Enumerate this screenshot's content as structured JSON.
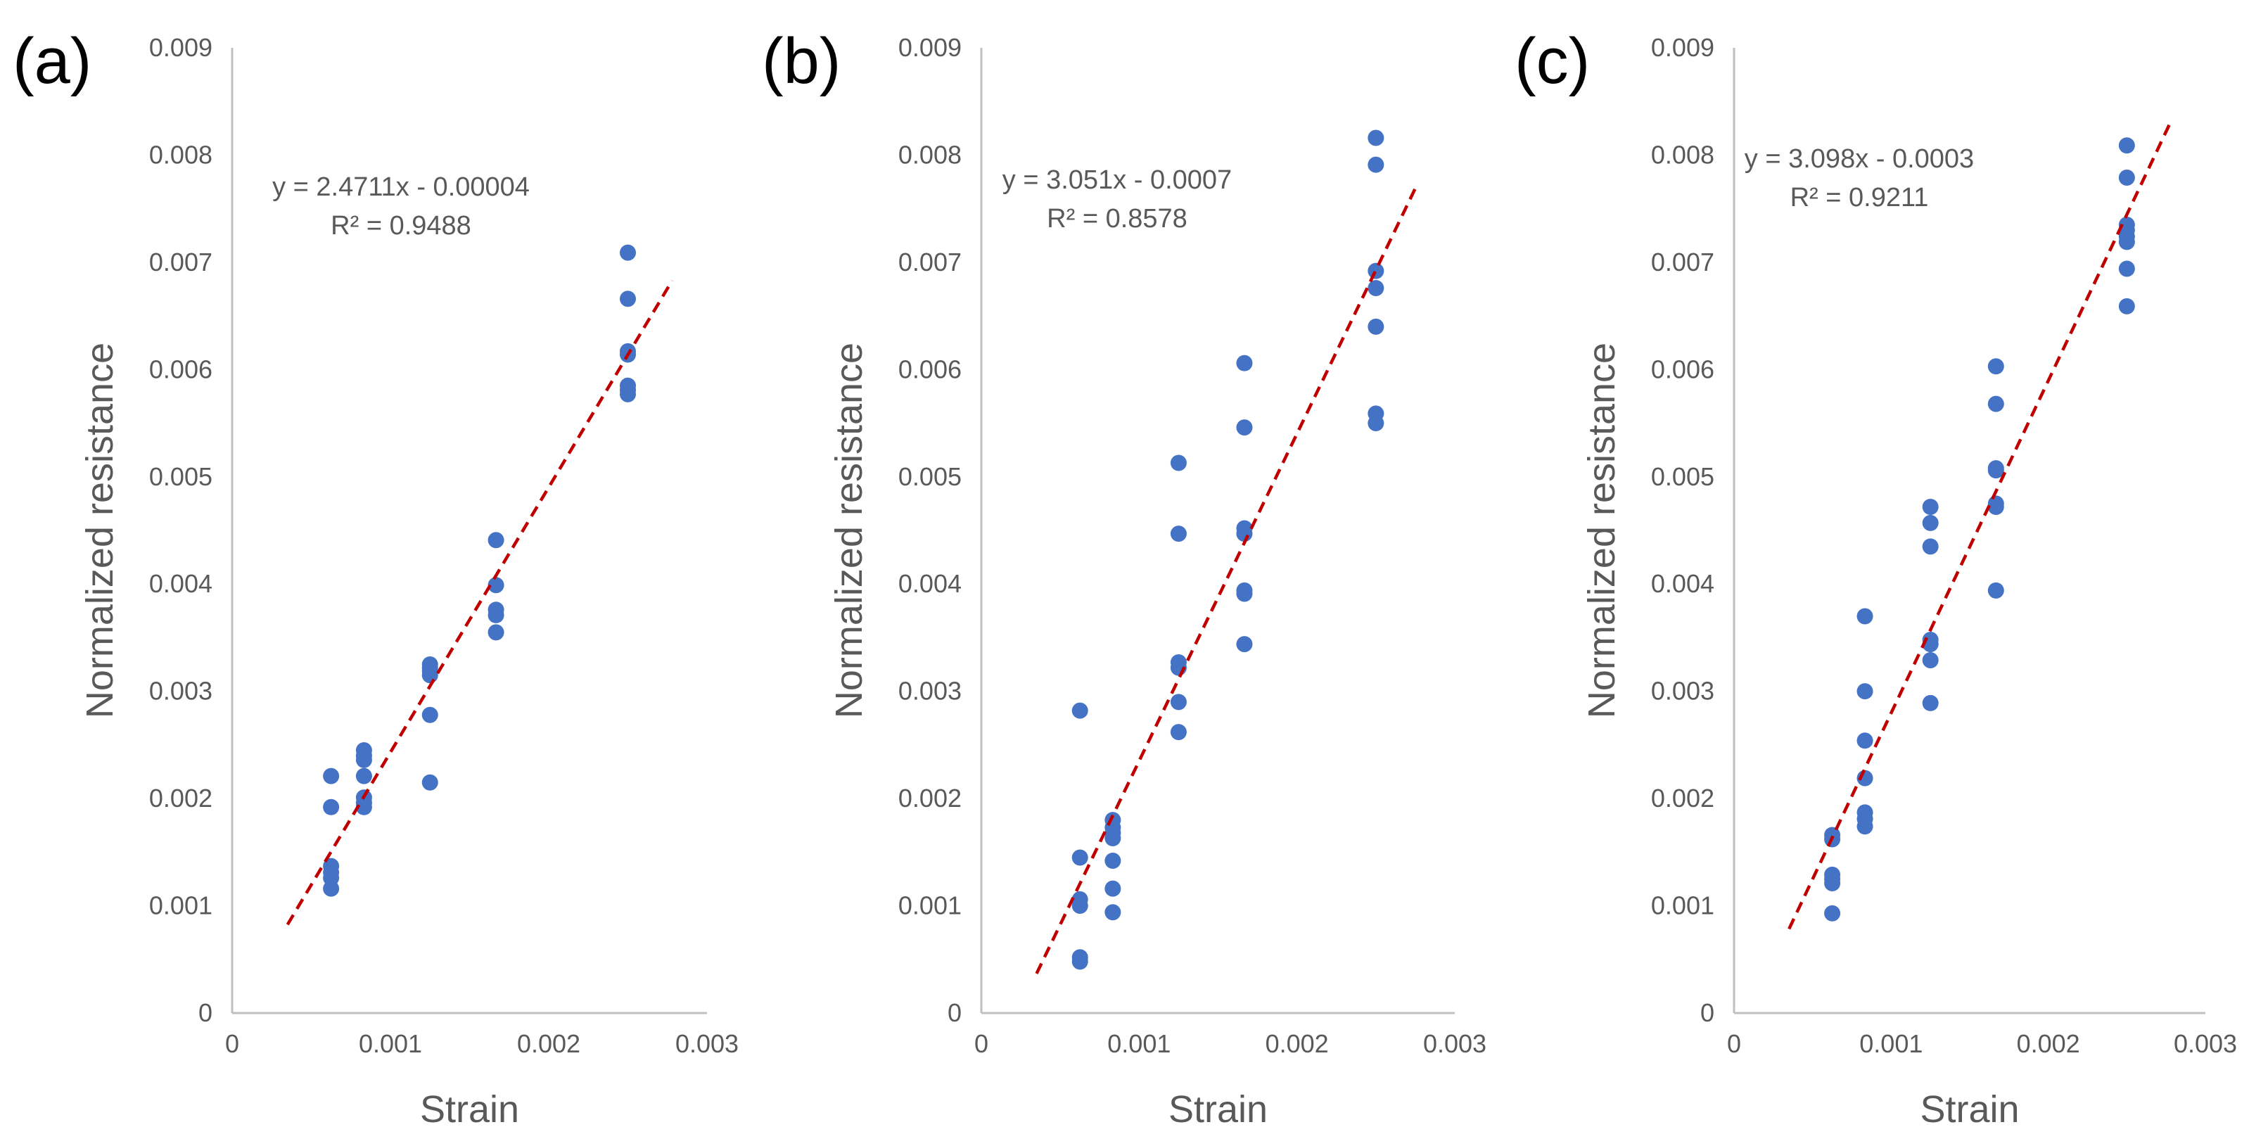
{
  "colors": {
    "points": "#4472C4",
    "trendline": "#C00000",
    "axis": "#bfbfbf",
    "text": "#595959"
  },
  "chart_data": [
    {
      "type": "scatter",
      "panel_label": "(a)",
      "xlabel": "Strain",
      "ylabel": "Normalized resistance",
      "xlim": [
        0,
        0.003
      ],
      "ylim": [
        0,
        0.009
      ],
      "x_ticks": [
        "0",
        "0.001",
        "0.002",
        "0.003"
      ],
      "y_ticks": [
        "0",
        "0.001",
        "0.002",
        "0.003",
        "0.004",
        "0.005",
        "0.006",
        "0.007",
        "0.008",
        "0.009"
      ],
      "grid": false,
      "trendline": {
        "slope": 2.4711,
        "intercept": -4e-05,
        "x_range": [
          0.00035,
          0.00278
        ],
        "style": "dashed",
        "equation": "y = 2.4711x - 0.00004",
        "r_squared": "R² = 0.9488"
      },
      "points": [
        [
          0.000625,
          0.00221
        ],
        [
          0.000625,
          0.00192
        ],
        [
          0.000625,
          0.00137
        ],
        [
          0.000625,
          0.00131
        ],
        [
          0.000625,
          0.00126
        ],
        [
          0.000625,
          0.00116
        ],
        [
          0.000833,
          0.00245
        ],
        [
          0.000833,
          0.0024
        ],
        [
          0.000833,
          0.00236
        ],
        [
          0.000833,
          0.00221
        ],
        [
          0.000833,
          0.00201
        ],
        [
          0.000833,
          0.00196
        ],
        [
          0.000833,
          0.00192
        ],
        [
          0.00125,
          0.00325
        ],
        [
          0.00125,
          0.00322
        ],
        [
          0.00125,
          0.00319
        ],
        [
          0.00125,
          0.00315
        ],
        [
          0.00125,
          0.00278
        ],
        [
          0.00125,
          0.00215
        ],
        [
          0.001667,
          0.00441
        ],
        [
          0.001667,
          0.00399
        ],
        [
          0.001667,
          0.00376
        ],
        [
          0.001667,
          0.00371
        ],
        [
          0.001667,
          0.00355
        ],
        [
          0.0025,
          0.00709
        ],
        [
          0.0025,
          0.00666
        ],
        [
          0.0025,
          0.00617
        ],
        [
          0.0025,
          0.00614
        ],
        [
          0.0025,
          0.00585
        ],
        [
          0.0025,
          0.00581
        ],
        [
          0.0025,
          0.00577
        ]
      ]
    },
    {
      "type": "scatter",
      "panel_label": "(b)",
      "xlabel": "Strain",
      "ylabel": "Normalized resistance",
      "xlim": [
        0,
        0.003
      ],
      "ylim": [
        0,
        0.009
      ],
      "x_ticks": [
        "0",
        "0.001",
        "0.002",
        "0.003"
      ],
      "y_ticks": [
        "0",
        "0.001",
        "0.002",
        "0.003",
        "0.004",
        "0.005",
        "0.006",
        "0.007",
        "0.008",
        "0.009"
      ],
      "grid": false,
      "trendline": {
        "slope": 3.051,
        "intercept": -0.0007,
        "x_range": [
          0.00035,
          0.00275
        ],
        "style": "dashed",
        "equation": "y = 3.051x - 0.0007",
        "r_squared": "R² = 0.8578"
      },
      "points": [
        [
          0.000625,
          0.00282
        ],
        [
          0.000625,
          0.00145
        ],
        [
          0.000625,
          0.00106
        ],
        [
          0.000625,
          0.001
        ],
        [
          0.000625,
          0.00052
        ],
        [
          0.000625,
          0.00048
        ],
        [
          0.000833,
          0.0018
        ],
        [
          0.000833,
          0.00173
        ],
        [
          0.000833,
          0.00168
        ],
        [
          0.000833,
          0.00163
        ],
        [
          0.000833,
          0.00142
        ],
        [
          0.000833,
          0.00116
        ],
        [
          0.000833,
          0.00094
        ],
        [
          0.00125,
          0.00513
        ],
        [
          0.00125,
          0.00447
        ],
        [
          0.00125,
          0.00327
        ],
        [
          0.00125,
          0.00322
        ],
        [
          0.00125,
          0.0029
        ],
        [
          0.00125,
          0.00262
        ],
        [
          0.001667,
          0.00606
        ],
        [
          0.001667,
          0.00546
        ],
        [
          0.001667,
          0.00452
        ],
        [
          0.001667,
          0.00447
        ],
        [
          0.001667,
          0.00394
        ],
        [
          0.001667,
          0.00391
        ],
        [
          0.001667,
          0.00344
        ],
        [
          0.0025,
          0.00816
        ],
        [
          0.0025,
          0.00791
        ],
        [
          0.0025,
          0.00692
        ],
        [
          0.0025,
          0.00676
        ],
        [
          0.0025,
          0.0064
        ],
        [
          0.0025,
          0.00559
        ],
        [
          0.0025,
          0.0055
        ]
      ]
    },
    {
      "type": "scatter",
      "panel_label": "(c)",
      "xlabel": "Strain",
      "ylabel": "Normalized resistance",
      "xlim": [
        0,
        0.003
      ],
      "ylim": [
        0,
        0.009
      ],
      "x_ticks": [
        "0",
        "0.001",
        "0.002",
        "0.003"
      ],
      "y_ticks": [
        "0",
        "0.001",
        "0.002",
        "0.003",
        "0.004",
        "0.005",
        "0.006",
        "0.007",
        "0.008",
        "0.009"
      ],
      "grid": false,
      "trendline": {
        "slope": 3.098,
        "intercept": -0.0003,
        "x_range": [
          0.00035,
          0.00278
        ],
        "style": "dashed",
        "equation": "y = 3.098x - 0.0003",
        "r_squared": "R² = 0.9211"
      },
      "points": [
        [
          0.000625,
          0.00166
        ],
        [
          0.000625,
          0.00162
        ],
        [
          0.000625,
          0.00129
        ],
        [
          0.000625,
          0.00125
        ],
        [
          0.000625,
          0.00121
        ],
        [
          0.000625,
          0.00093
        ],
        [
          0.000833,
          0.0037
        ],
        [
          0.000833,
          0.003
        ],
        [
          0.000833,
          0.00254
        ],
        [
          0.000833,
          0.00219
        ],
        [
          0.000833,
          0.00187
        ],
        [
          0.000833,
          0.00181
        ],
        [
          0.000833,
          0.00174
        ],
        [
          0.00125,
          0.00472
        ],
        [
          0.00125,
          0.00457
        ],
        [
          0.00125,
          0.00435
        ],
        [
          0.00125,
          0.00348
        ],
        [
          0.00125,
          0.00344
        ],
        [
          0.00125,
          0.00329
        ],
        [
          0.00125,
          0.00289
        ],
        [
          0.001667,
          0.00603
        ],
        [
          0.001667,
          0.00568
        ],
        [
          0.001667,
          0.00508
        ],
        [
          0.001667,
          0.00506
        ],
        [
          0.001667,
          0.00475
        ],
        [
          0.001667,
          0.00472
        ],
        [
          0.001667,
          0.00394
        ],
        [
          0.0025,
          0.00809
        ],
        [
          0.0025,
          0.00779
        ],
        [
          0.0025,
          0.00735
        ],
        [
          0.0025,
          0.0073
        ],
        [
          0.0025,
          0.00724
        ],
        [
          0.0025,
          0.00719
        ],
        [
          0.0025,
          0.00694
        ],
        [
          0.0025,
          0.00659
        ]
      ]
    }
  ]
}
